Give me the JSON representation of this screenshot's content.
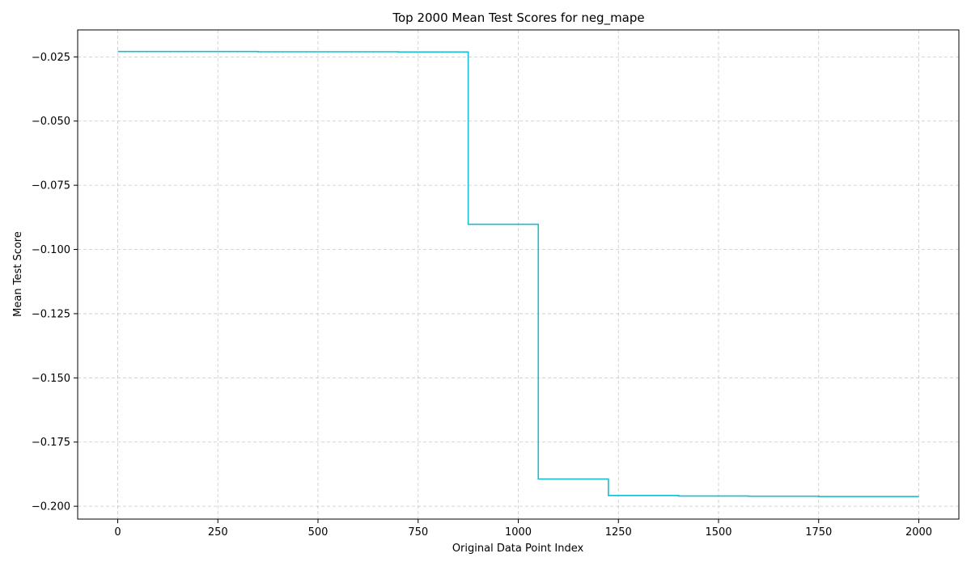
{
  "chart_data": {
    "type": "line",
    "title": "Top 2000 Mean Test Scores for neg_mape",
    "xlabel": "Original Data Point Index",
    "ylabel": "Mean Test Score",
    "xlim": [
      -100,
      2100
    ],
    "ylim": [
      -0.205,
      -0.0145
    ],
    "xticks": [
      0,
      250,
      500,
      750,
      1000,
      1250,
      1500,
      1750,
      2000
    ],
    "yticks": [
      -0.025,
      -0.05,
      -0.075,
      -0.1,
      -0.125,
      -0.15,
      -0.175,
      -0.2
    ],
    "ytick_labels": [
      "−0.025",
      "−0.050",
      "−0.075",
      "−0.100",
      "−0.125",
      "−0.150",
      "−0.175",
      "−0.200"
    ],
    "xtick_labels": [
      "0",
      "250",
      "500",
      "750",
      "1000",
      "1250",
      "1500",
      "1750",
      "2000"
    ],
    "grid": true,
    "line_color": "#17becf",
    "series": [
      {
        "x": [
          0,
          350,
          350,
          700,
          700,
          875,
          875,
          1050,
          1050,
          1225,
          1225,
          1400,
          1400,
          1575,
          1575,
          1750,
          1750,
          2000
        ],
        "y": [
          -0.0229,
          -0.0229,
          -0.023,
          -0.023,
          -0.0231,
          -0.0231,
          -0.0902,
          -0.0902,
          -0.1894,
          -0.1894,
          -0.1958,
          -0.1958,
          -0.196,
          -0.196,
          -0.1961,
          -0.1961,
          -0.1962,
          -0.1962
        ]
      }
    ]
  }
}
